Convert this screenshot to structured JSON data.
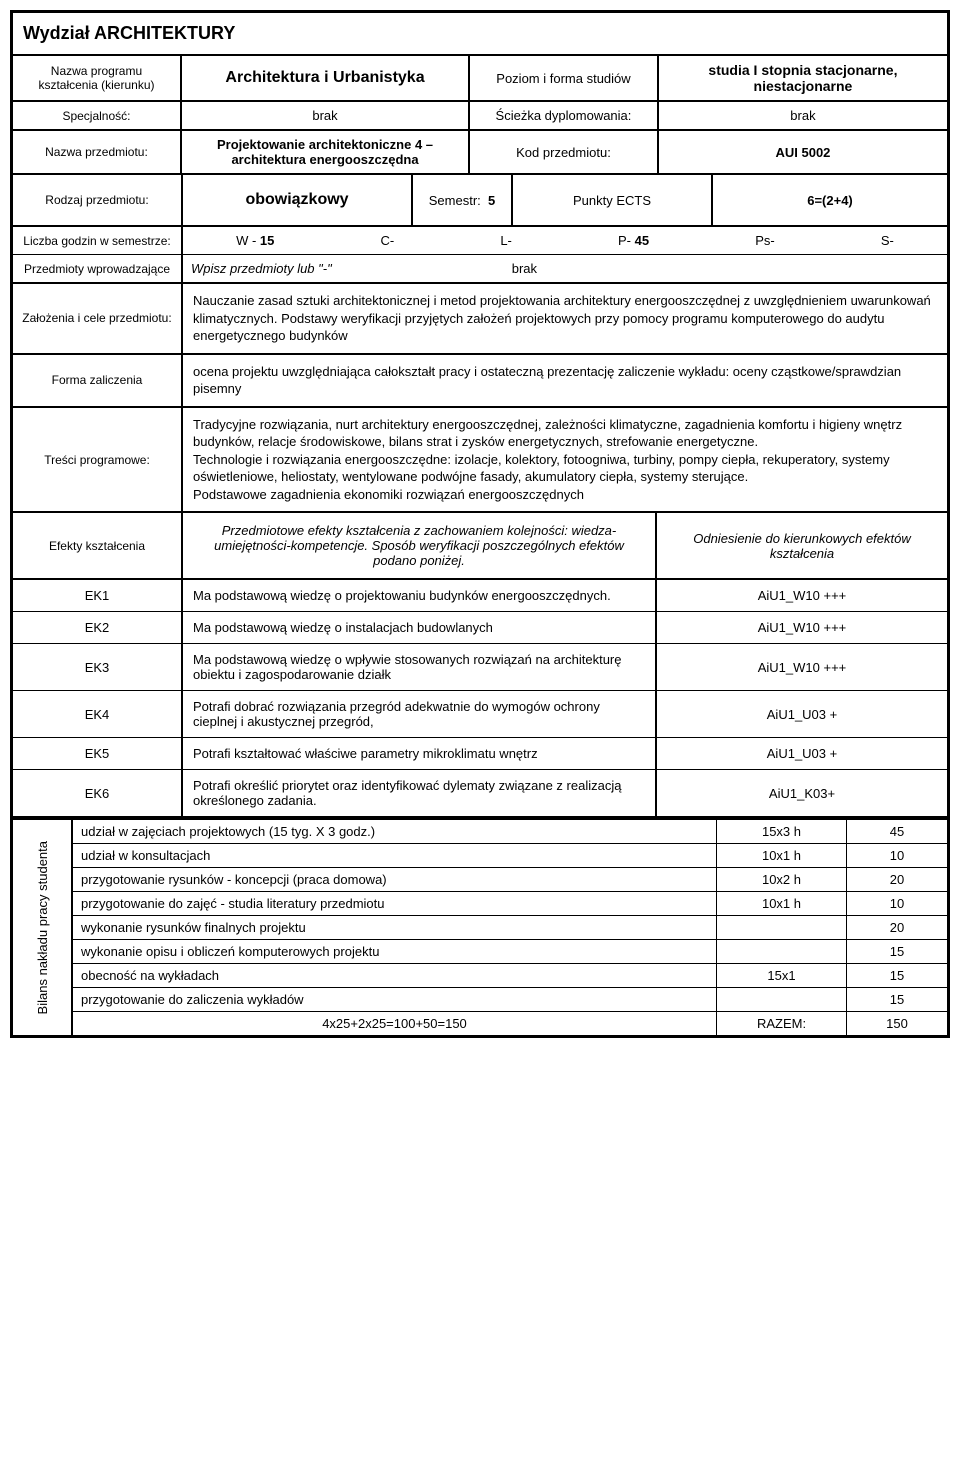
{
  "header": {
    "faculty": "Wydział ARCHITEKTURY"
  },
  "row1": {
    "program_label": "Nazwa programu kształcenia (kierunku)",
    "program_value": "Architektura i Urbanistyka",
    "level_label": "Poziom i forma studiów",
    "level_value": "studia I stopnia stacjonarne, niestacjonarne"
  },
  "row2": {
    "spec_label": "Specjalność:",
    "spec_value": "brak",
    "path_label": "Ścieżka dyplomowania:",
    "path_value": "brak"
  },
  "row3": {
    "subject_label": "Nazwa przedmiotu:",
    "subject_value": "Projektowanie architektoniczne 4 – architektura energooszczędna",
    "code_label": "Kod przedmiotu:",
    "code_value": "AUI 5002"
  },
  "row4": {
    "type_label": "Rodzaj przedmiotu:",
    "type_value": "obowiązkowy",
    "sem_label": "Semestr:",
    "sem_value": "5",
    "ects_label": "Punkty ECTS",
    "ects_value": "6=(2+4)"
  },
  "row5": {
    "hours_label": "Liczba godzin w semestrze:",
    "w": "W - 15",
    "c": "C-",
    "l": "L-",
    "p": "P- 45",
    "ps": "Ps-",
    "s": "S-"
  },
  "row6": {
    "prereq_label": "Przedmioty wprowadzające",
    "prereq_hint": "Wpisz przedmioty lub \"-\"",
    "prereq_value": "brak"
  },
  "row7": {
    "goals_label": "Założenia i cele przedmiotu:",
    "goals_text": "Nauczanie zasad sztuki architektonicznej i metod projektowania architektury energooszczędnej z uwzględnieniem uwarunkowań klimatycznych. Podstawy weryfikacji przyjętych założeń projektowych przy pomocy programu komputerowego do audytu energetycznego budynków"
  },
  "row8": {
    "form_label": "Forma zaliczenia",
    "form_text": "ocena projektu uwzględniająca całokształt pracy i ostateczną prezentację  zaliczenie wykładu: oceny cząstkowe/sprawdzian pisemny"
  },
  "row9": {
    "content_label": "Treści programowe:",
    "content_text": "Tradycyjne rozwiązania, nurt architektury energooszczędnej, zależności klimatyczne, zagadnienia komfortu i higieny wnętrz budynków, relacje środowiskowe, bilans strat i zysków energetycznych, strefowanie energetyczne.\nTechnologie i rozwiązania energooszczędne: izolacje, kolektory, fotoogniwa, turbiny, pompy ciepła, rekuperatory, systemy oświetleniowe, heliostaty, wentylowane podwójne fasady, akumulatory ciepła, systemy sterujące.\nPodstawowe zagadnienia ekonomiki rozwiązań energooszczędnych"
  },
  "effects_header": {
    "label": "Efekty kształcenia",
    "desc": "Przedmiotowe efekty kształcenia z zachowaniem kolejności: wiedza-umiejętności-kompetencje. Sposób weryfikacji poszczególnych efektów podano poniżej.",
    "ref": "Odniesienie do kierunkowych efektów kształcenia"
  },
  "effects": [
    {
      "code": "EK1",
      "desc": "Ma podstawową wiedzę  o projektowaniu budynków energooszczędnych.",
      "ref": "AiU1_W10 +++"
    },
    {
      "code": "EK2",
      "desc": "Ma podstawową wiedzę o instalacjach budowlanych",
      "ref": "AiU1_W10 +++"
    },
    {
      "code": "EK3",
      "desc": "Ma podstawową wiedzę o wpływie stosowanych rozwiązań na architekturę obiektu i zagospodarowanie działk",
      "ref": "AiU1_W10 +++"
    },
    {
      "code": "EK4",
      "desc": "Potrafi dobrać rozwiązania przegród adekwatnie do wymogów ochrony cieplnej i akustycznej przegród,",
      "ref": "AiU1_U03 +"
    },
    {
      "code": "EK5",
      "desc": "Potrafi kształtować właściwe parametry mikroklimatu wnętrz",
      "ref": "AiU1_U03 +"
    },
    {
      "code": "EK6",
      "desc": "Potrafi określić priorytet oraz identyfikować dylematy związane z realizacją określonego zadania.",
      "ref": "AiU1_K03+"
    }
  ],
  "bilans": {
    "label": "Bilans nakładu pracy studenta",
    "rows": [
      {
        "desc": "udział w zajęciach projektowych (15 tyg. X 3 godz.)",
        "calc": "15x3 h",
        "val": "45"
      },
      {
        "desc": "udział w konsultacjach",
        "calc": "10x1 h",
        "val": "10"
      },
      {
        "desc": "przygotowanie rysunków - koncepcji (praca domowa)",
        "calc": "10x2 h",
        "val": "20"
      },
      {
        "desc": "przygotowanie do zajęć - studia literatury przedmiotu",
        "calc": "10x1 h",
        "val": "10"
      },
      {
        "desc": "wykonanie rysunków finalnych projektu",
        "calc": "",
        "val": "20"
      },
      {
        "desc": "wykonanie opisu i obliczeń komputerowych projektu",
        "calc": "",
        "val": "15"
      },
      {
        "desc": "obecność na wykładach",
        "calc": "15x1",
        "val": "15"
      },
      {
        "desc": "przygotowanie do zaliczenia wykładów",
        "calc": "",
        "val": "15"
      }
    ],
    "sum": {
      "desc": "4x25+2x25=100+50=150",
      "calc": "RAZEM:",
      "val": "150"
    }
  }
}
